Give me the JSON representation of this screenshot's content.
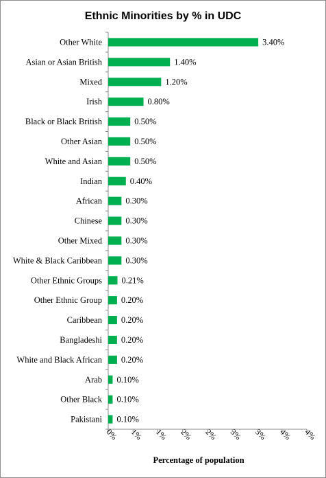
{
  "chart_data": {
    "type": "bar",
    "orientation": "horizontal",
    "title": "Ethnic Minorities by %  in UDC",
    "xlabel": "Percentage of population",
    "ylabel": "",
    "xlim": [
      0,
      4.5
    ],
    "x_tick_labels": [
      "0%",
      "1%",
      "1%",
      "2%",
      "2%",
      "3%",
      "3%",
      "4%",
      "4%"
    ],
    "grid": false,
    "legend": "none",
    "bar_color": "#00b050",
    "categories": [
      "Other White",
      "Asian or Asian British",
      "Mixed",
      "Irish",
      "Black or Black British",
      "Other Asian",
      "White and Asian",
      "Indian",
      "African",
      "Chinese",
      "Other Mixed",
      "White & Black Caribbean",
      "Other Ethnic Groups",
      "Other Ethnic Group",
      "Caribbean",
      "Bangladeshi",
      "White and Black African",
      "Arab",
      "Other Black",
      "Pakistani"
    ],
    "values": [
      3.4,
      1.4,
      1.2,
      0.8,
      0.5,
      0.5,
      0.5,
      0.4,
      0.3,
      0.3,
      0.3,
      0.3,
      0.21,
      0.2,
      0.2,
      0.2,
      0.2,
      0.1,
      0.1,
      0.1
    ],
    "data_labels": [
      "3.40%",
      "1.40%",
      "1.20%",
      "0.80%",
      "0.50%",
      "0.50%",
      "0.50%",
      "0.40%",
      "0.30%",
      "0.30%",
      "0.30%",
      "0.30%",
      "0.21%",
      "0.20%",
      "0.20%",
      "0.20%",
      "0.20%",
      "0.10%",
      "0.10%",
      "0.10%"
    ]
  }
}
